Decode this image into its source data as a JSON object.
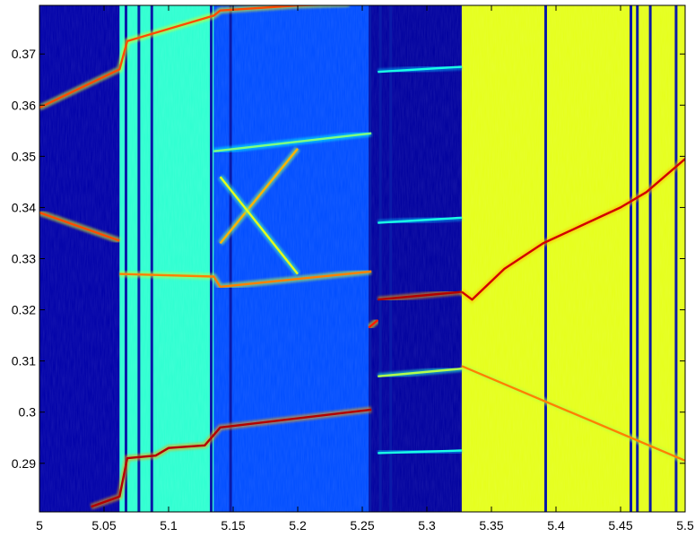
{
  "chart_data": {
    "type": "heatmap",
    "title": "",
    "xlabel": "",
    "ylabel": "",
    "xlim": [
      5.0,
      5.5
    ],
    "ylim": [
      0.2805,
      0.3795
    ],
    "grid": false,
    "colormap": "jet",
    "x_ticks": [
      5.0,
      5.05,
      5.1,
      5.15,
      5.2,
      5.25,
      5.3,
      5.35,
      5.4,
      5.45,
      5.5
    ],
    "x_tick_labels": [
      "5",
      "5.05",
      "5.1",
      "5.15",
      "5.2",
      "5.25",
      "5.3",
      "5.35",
      "5.4",
      "5.45",
      "5.5"
    ],
    "y_ticks": [
      0.29,
      0.3,
      0.31,
      0.32,
      0.33,
      0.34,
      0.35,
      0.36,
      0.37
    ],
    "y_tick_labels": [
      "0.29",
      "0.3",
      "0.31",
      "0.32",
      "0.33",
      "0.34",
      "0.35",
      "0.36",
      "0.37"
    ],
    "regions": [
      {
        "x0": 5.0,
        "x1": 5.062,
        "level": 0.04
      },
      {
        "x0": 5.062,
        "x1": 5.135,
        "level": 0.42
      },
      {
        "x0": 5.135,
        "x1": 5.255,
        "level": 0.2
      },
      {
        "x0": 5.255,
        "x1": 5.327,
        "level": 0.03
      },
      {
        "x0": 5.327,
        "x1": 5.5,
        "level": 0.6
      }
    ],
    "dark_lines": [
      5.067,
      5.077,
      5.087,
      5.133,
      5.148,
      5.256,
      5.264,
      5.272,
      5.392,
      5.458,
      5.463,
      5.473,
      5.493
    ],
    "ridges": [
      {
        "x": [
          5.0,
          5.062,
          5.068,
          5.135,
          5.14,
          5.2,
          5.24
        ],
        "y": [
          0.3595,
          0.367,
          0.3725,
          0.3775,
          0.3785,
          0.3795,
          0.3798
        ],
        "level": 0.8
      },
      {
        "x": [
          5.0,
          5.062
        ],
        "y": [
          0.339,
          0.3335
        ],
        "level": 0.8
      },
      {
        "x": [
          5.062,
          5.135,
          5.14,
          5.257
        ],
        "y": [
          0.327,
          0.3265,
          0.3245,
          0.3275
        ],
        "level": 0.75
      },
      {
        "x": [
          5.135,
          5.257
        ],
        "y": [
          0.351,
          0.3545
        ],
        "level": 0.5
      },
      {
        "x": [
          5.04,
          5.062,
          5.068,
          5.09,
          5.1,
          5.128,
          5.14,
          5.257
        ],
        "y": [
          0.2815,
          0.2835,
          0.291,
          0.2915,
          0.293,
          0.2935,
          0.297,
          0.3005
        ],
        "level": 0.95
      },
      {
        "x": [
          5.262,
          5.327
        ],
        "y": [
          0.322,
          0.3235
        ],
        "level": 0.95
      },
      {
        "x": [
          5.262,
          5.327
        ],
        "y": [
          0.307,
          0.3085
        ],
        "level": 0.55
      },
      {
        "x": [
          5.255,
          5.262
        ],
        "y": [
          0.3165,
          0.318
        ],
        "level": 0.85
      },
      {
        "x": [
          5.262,
          5.327
        ],
        "y": [
          0.292,
          0.2925
        ],
        "level": 0.4
      },
      {
        "x": [
          5.262,
          5.327
        ],
        "y": [
          0.337,
          0.338
        ],
        "level": 0.4
      },
      {
        "x": [
          5.262,
          5.327
        ],
        "y": [
          0.3665,
          0.3675
        ],
        "level": 0.4
      },
      {
        "x": [
          5.327,
          5.335,
          5.36,
          5.39,
          5.42,
          5.45,
          5.47,
          5.5
        ],
        "y": [
          0.3235,
          0.322,
          0.328,
          0.333,
          0.3365,
          0.34,
          0.343,
          0.3495
        ],
        "level": 0.92
      },
      {
        "x": [
          5.14,
          5.2
        ],
        "y": [
          0.333,
          0.3515
        ],
        "level": 0.7
      },
      {
        "x": [
          5.14,
          5.2
        ],
        "y": [
          0.346,
          0.327
        ],
        "level": 0.6
      },
      {
        "x": [
          5.327,
          5.5
        ],
        "y": [
          0.309,
          0.2905
        ],
        "level": 0.75
      }
    ]
  }
}
